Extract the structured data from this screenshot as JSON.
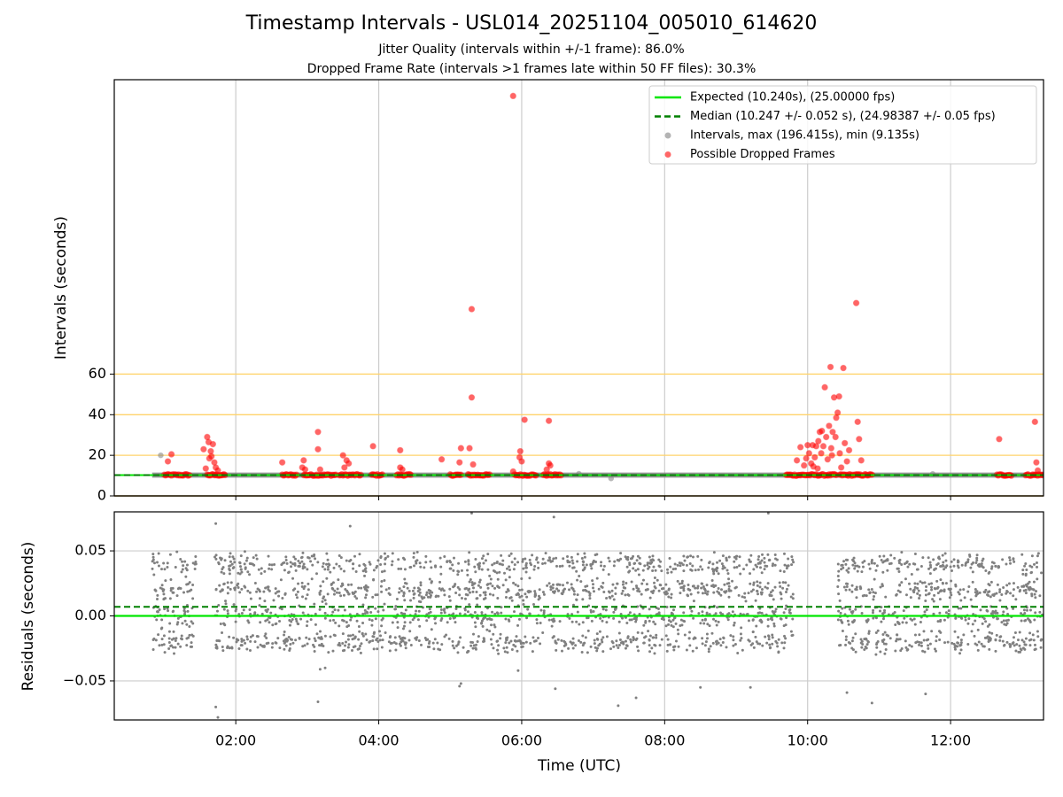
{
  "title": "Timestamp Intervals - USL014_20251104_005010_614620",
  "subtitle1": "Jitter Quality (intervals within +/-1 frame): 86.0%",
  "subtitle2": "Dropped Frame Rate (intervals >1 frames late within 50 FF files): 30.3%",
  "colors": {
    "expected": "#00e600",
    "median": "#008000",
    "intervals": "#808080",
    "dropped": "#ff0000",
    "threshold": "#ffd36b",
    "grid": "#cccccc"
  },
  "chart_data": [
    {
      "type": "scatter",
      "ylabel": "Intervals (seconds)",
      "xlim_hours": [
        0.3,
        13.3
      ],
      "ylim": [
        0,
        205
      ],
      "yticks": [
        0,
        20,
        40,
        60
      ],
      "x_tick_labels": [
        "02:00",
        "04:00",
        "06:00",
        "08:00",
        "10:00",
        "12:00"
      ],
      "x_ticks_hours": [
        2,
        4,
        6,
        8,
        10,
        12
      ],
      "grid": "vertical",
      "threshold_lines": [
        20,
        40,
        60
      ],
      "expected_value": 10.24,
      "median_value": 10.247,
      "legend_position": "top-right",
      "legend": [
        {
          "label": "Expected (10.240s), (25.00000 fps)",
          "kind": "solid-line",
          "color": "#00e600"
        },
        {
          "label": "Median (10.247 +/- 0.052 s), (24.98387 +/- 0.05 fps)",
          "kind": "dashed-line",
          "color": "#008000"
        },
        {
          "label": "Intervals, max (196.415s), min (9.135s)",
          "kind": "marker",
          "color": "#808080"
        },
        {
          "label": "Possible Dropped Frames",
          "kind": "marker",
          "color": "#ff0000"
        }
      ],
      "intervals_range_hours": [
        0.83,
        13.3
      ],
      "interval_points": [
        {
          "x": 0.95,
          "y": 20.0
        },
        {
          "x": 7.25,
          "y": 8.6
        },
        {
          "x": 11.75,
          "y": 10.8
        },
        {
          "x": 6.8,
          "y": 10.9
        }
      ],
      "dropped_clusters": [
        {
          "from": 1.0,
          "to": 1.35,
          "y": 10.3
        },
        {
          "from": 1.6,
          "to": 1.85,
          "y": 10.3
        },
        {
          "from": 2.65,
          "to": 2.85,
          "y": 10.3
        },
        {
          "from": 2.95,
          "to": 3.4,
          "y": 10.3
        },
        {
          "from": 3.45,
          "to": 3.75,
          "y": 10.3
        },
        {
          "from": 3.9,
          "to": 4.05,
          "y": 10.3
        },
        {
          "from": 4.25,
          "to": 4.45,
          "y": 10.3
        },
        {
          "from": 5.0,
          "to": 5.15,
          "y": 10.3
        },
        {
          "from": 5.25,
          "to": 5.55,
          "y": 10.3
        },
        {
          "from": 5.9,
          "to": 6.2,
          "y": 10.3
        },
        {
          "from": 6.3,
          "to": 6.55,
          "y": 10.3
        },
        {
          "from": 9.7,
          "to": 10.4,
          "y": 10.3
        },
        {
          "from": 10.45,
          "to": 10.9,
          "y": 10.3
        },
        {
          "from": 12.65,
          "to": 12.85,
          "y": 10.3
        },
        {
          "from": 13.05,
          "to": 13.3,
          "y": 10.3
        }
      ],
      "dropped_points": [
        {
          "x": 1.1,
          "y": 20.5
        },
        {
          "x": 1.05,
          "y": 17.0
        },
        {
          "x": 1.55,
          "y": 23.0
        },
        {
          "x": 1.6,
          "y": 29.0
        },
        {
          "x": 1.62,
          "y": 26.5
        },
        {
          "x": 1.65,
          "y": 22.0
        },
        {
          "x": 1.68,
          "y": 25.5
        },
        {
          "x": 1.63,
          "y": 18.5
        },
        {
          "x": 1.7,
          "y": 16.5
        },
        {
          "x": 1.72,
          "y": 14.0
        },
        {
          "x": 1.58,
          "y": 13.5
        },
        {
          "x": 1.75,
          "y": 12.5
        },
        {
          "x": 1.66,
          "y": 19.5
        },
        {
          "x": 2.65,
          "y": 16.5
        },
        {
          "x": 2.95,
          "y": 17.5
        },
        {
          "x": 2.93,
          "y": 14.0
        },
        {
          "x": 2.97,
          "y": 13.0
        },
        {
          "x": 3.15,
          "y": 31.5
        },
        {
          "x": 3.15,
          "y": 23.0
        },
        {
          "x": 3.18,
          "y": 13.0
        },
        {
          "x": 3.5,
          "y": 20.0
        },
        {
          "x": 3.55,
          "y": 17.5
        },
        {
          "x": 3.52,
          "y": 14.0
        },
        {
          "x": 3.58,
          "y": 16.0
        },
        {
          "x": 3.92,
          "y": 24.5
        },
        {
          "x": 4.3,
          "y": 22.5
        },
        {
          "x": 4.3,
          "y": 14.0
        },
        {
          "x": 4.33,
          "y": 13.0
        },
        {
          "x": 4.88,
          "y": 18.0
        },
        {
          "x": 5.15,
          "y": 23.5
        },
        {
          "x": 5.13,
          "y": 16.5
        },
        {
          "x": 5.27,
          "y": 23.5
        },
        {
          "x": 5.3,
          "y": 48.5
        },
        {
          "x": 5.3,
          "y": 92.0
        },
        {
          "x": 5.32,
          "y": 15.5
        },
        {
          "x": 5.88,
          "y": 12.0
        },
        {
          "x": 5.88,
          "y": 197.0
        },
        {
          "x": 5.98,
          "y": 22.0
        },
        {
          "x": 5.97,
          "y": 19.0
        },
        {
          "x": 6.0,
          "y": 17.0
        },
        {
          "x": 6.04,
          "y": 37.5
        },
        {
          "x": 6.38,
          "y": 16.0
        },
        {
          "x": 6.35,
          "y": 13.0
        },
        {
          "x": 6.4,
          "y": 15.0
        },
        {
          "x": 6.38,
          "y": 37.0
        },
        {
          "x": 9.85,
          "y": 17.5
        },
        {
          "x": 9.9,
          "y": 24.0
        },
        {
          "x": 9.95,
          "y": 15.0
        },
        {
          "x": 9.98,
          "y": 18.5
        },
        {
          "x": 10.0,
          "y": 25.0
        },
        {
          "x": 10.02,
          "y": 21.0
        },
        {
          "x": 10.05,
          "y": 16.0
        },
        {
          "x": 10.07,
          "y": 25.0
        },
        {
          "x": 10.1,
          "y": 19.0
        },
        {
          "x": 10.12,
          "y": 24.5
        },
        {
          "x": 10.14,
          "y": 13.5
        },
        {
          "x": 10.15,
          "y": 27.0
        },
        {
          "x": 10.17,
          "y": 31.5
        },
        {
          "x": 10.19,
          "y": 21.0
        },
        {
          "x": 10.2,
          "y": 32.0
        },
        {
          "x": 10.22,
          "y": 24.5
        },
        {
          "x": 10.24,
          "y": 53.5
        },
        {
          "x": 10.26,
          "y": 29.0
        },
        {
          "x": 10.28,
          "y": 18.0
        },
        {
          "x": 10.3,
          "y": 34.5
        },
        {
          "x": 10.32,
          "y": 63.5
        },
        {
          "x": 10.33,
          "y": 23.5
        },
        {
          "x": 10.35,
          "y": 31.5
        },
        {
          "x": 10.37,
          "y": 48.5
        },
        {
          "x": 10.39,
          "y": 29.0
        },
        {
          "x": 10.4,
          "y": 38.5
        },
        {
          "x": 10.42,
          "y": 41.0
        },
        {
          "x": 10.44,
          "y": 49.0
        },
        {
          "x": 10.45,
          "y": 21.0
        },
        {
          "x": 10.47,
          "y": 14.0
        },
        {
          "x": 10.5,
          "y": 63.0
        },
        {
          "x": 10.52,
          "y": 26.0
        },
        {
          "x": 10.55,
          "y": 17.0
        },
        {
          "x": 10.58,
          "y": 22.5
        },
        {
          "x": 10.68,
          "y": 95.0
        },
        {
          "x": 10.7,
          "y": 36.5
        },
        {
          "x": 10.72,
          "y": 28.0
        },
        {
          "x": 10.75,
          "y": 17.5
        },
        {
          "x": 10.34,
          "y": 20.0
        },
        {
          "x": 10.08,
          "y": 14.5
        },
        {
          "x": 12.68,
          "y": 28.0
        },
        {
          "x": 13.18,
          "y": 36.5
        },
        {
          "x": 13.2,
          "y": 16.5
        },
        {
          "x": 13.22,
          "y": 12.5
        }
      ]
    },
    {
      "type": "scatter",
      "xlabel": "Time (UTC)",
      "ylabel": "Residuals (seconds)",
      "xlim_hours": [
        0.3,
        13.3
      ],
      "ylim": [
        -0.08,
        0.08
      ],
      "yticks": [
        -0.05,
        0.0,
        0.05
      ],
      "ytick_labels": [
        "−0.05",
        "0.00",
        "0.05"
      ],
      "x_tick_labels": [
        "02:00",
        "04:00",
        "06:00",
        "08:00",
        "10:00",
        "12:00"
      ],
      "x_ticks_hours": [
        2,
        4,
        6,
        8,
        10,
        12
      ],
      "grid": "both",
      "expected_line": 0.0,
      "median_line": 0.007,
      "residual_segments": [
        {
          "from": 0.83,
          "to": 1.45
        },
        {
          "from": 1.7,
          "to": 9.8
        },
        {
          "from": 10.42,
          "to": 13.3
        }
      ],
      "residual_levels": [
        0.02,
        -0.02,
        0.0,
        0.04
      ],
      "residual_spread": 0.01,
      "residual_count_per_hour": 240,
      "residual_outliers": [
        {
          "x": 1.72,
          "y": 0.071
        },
        {
          "x": 1.72,
          "y": -0.07
        },
        {
          "x": 1.75,
          "y": -0.078
        },
        {
          "x": 3.15,
          "y": -0.066
        },
        {
          "x": 3.18,
          "y": -0.041
        },
        {
          "x": 3.25,
          "y": -0.04
        },
        {
          "x": 3.6,
          "y": 0.069
        },
        {
          "x": 5.15,
          "y": -0.052
        },
        {
          "x": 5.13,
          "y": -0.054
        },
        {
          "x": 5.3,
          "y": 0.079
        },
        {
          "x": 5.95,
          "y": -0.042
        },
        {
          "x": 6.45,
          "y": 0.076
        },
        {
          "x": 6.47,
          "y": -0.056
        },
        {
          "x": 7.35,
          "y": -0.069
        },
        {
          "x": 7.6,
          "y": -0.063
        },
        {
          "x": 8.5,
          "y": -0.055
        },
        {
          "x": 9.2,
          "y": -0.055
        },
        {
          "x": 9.45,
          "y": 0.079
        },
        {
          "x": 10.55,
          "y": -0.059
        },
        {
          "x": 10.9,
          "y": -0.067
        },
        {
          "x": 11.65,
          "y": -0.06
        }
      ]
    }
  ]
}
